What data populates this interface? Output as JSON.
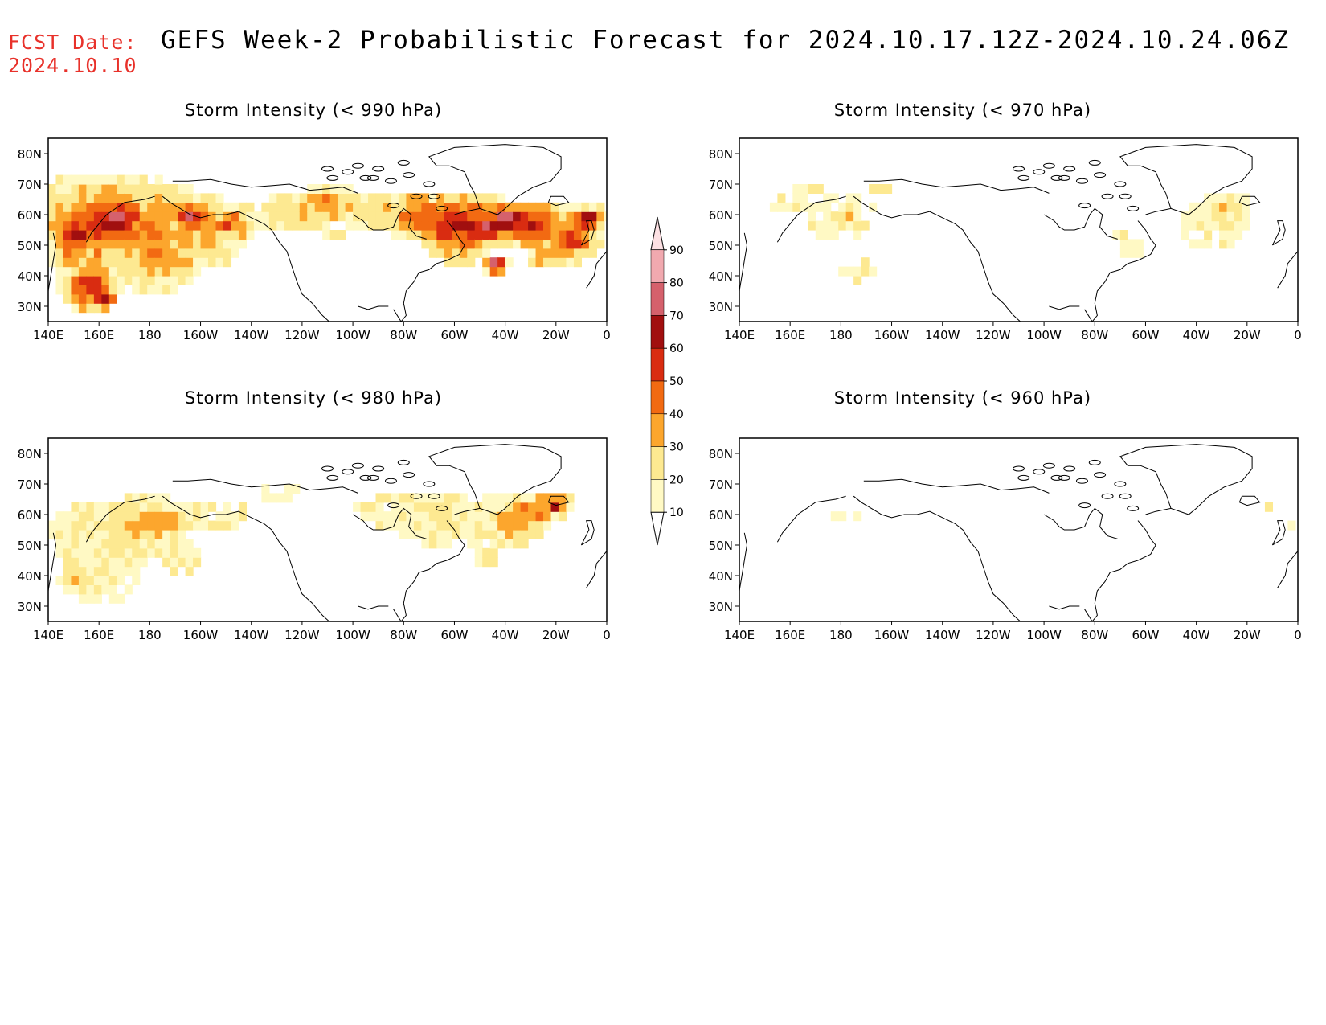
{
  "header": {
    "fcst_label": "FCST Date:",
    "fcst_date": "2024.10.10",
    "title": "GEFS Week-2 Probabilistic Forecast for 2024.10.17.12Z-2024.10.24.06Z"
  },
  "axes": {
    "lat_labels": [
      "80N",
      "70N",
      "60N",
      "50N",
      "40N",
      "30N"
    ],
    "lon_labels": [
      "140E",
      "160E",
      "180",
      "160W",
      "140W",
      "120W",
      "100W",
      "80W",
      "60W",
      "40W",
      "20W",
      "0"
    ]
  },
  "colorbar": {
    "levels": [
      "10",
      "20",
      "30",
      "40",
      "50",
      "60",
      "70",
      "80",
      "90"
    ],
    "colors": [
      "#fff9c4",
      "#fde991",
      "#fca62d",
      "#f26a12",
      "#d92c11",
      "#a10f0f",
      "#d5616c",
      "#f1a9af",
      "#fde1e4"
    ]
  },
  "panels": [
    {
      "id": "p990",
      "title": "Storm Intensity (< 990 hPa)",
      "intensity": "high"
    },
    {
      "id": "p970",
      "title": "Storm Intensity (< 970 hPa)",
      "intensity": "low"
    },
    {
      "id": "p980",
      "title": "Storm Intensity (< 980 hPa)",
      "intensity": "medium"
    },
    {
      "id": "p960",
      "title": "Storm Intensity (< 960 hPa)",
      "intensity": "minimal"
    }
  ]
}
